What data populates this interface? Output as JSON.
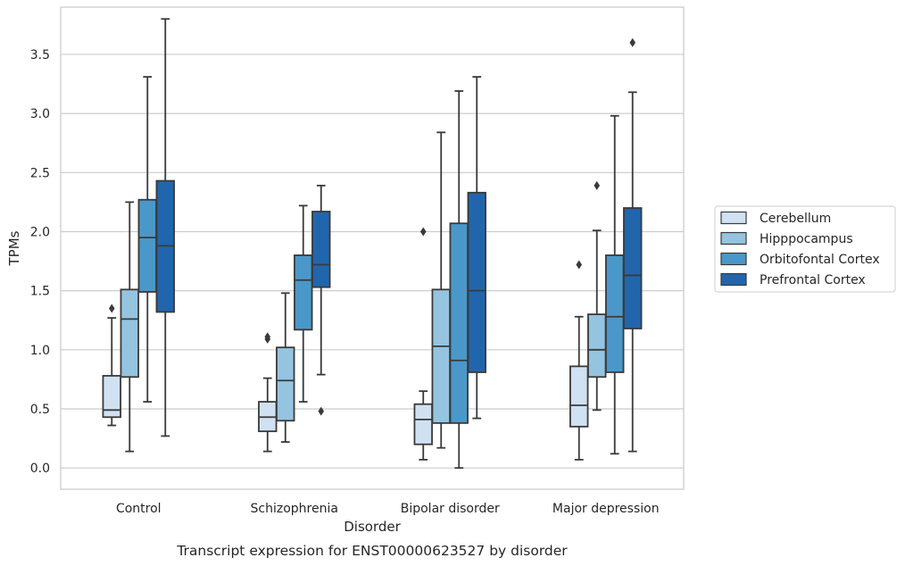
{
  "chart_data": {
    "type": "box",
    "title": "",
    "caption": "Transcript expression for ENST00000623527 by disorder",
    "xlabel": "Disorder",
    "ylabel": "TPMs",
    "ylim": [
      -0.18,
      3.9
    ],
    "yticks": [
      "0.0",
      "0.5",
      "1.0",
      "1.5",
      "2.0",
      "2.5",
      "3.0",
      "3.5"
    ],
    "ytick_values": [
      0,
      0.5,
      1.0,
      1.5,
      2.0,
      2.5,
      3.0,
      3.5
    ],
    "grid": "horizontal",
    "legend_position": "right",
    "categories": [
      "Control",
      "Schizophrenia",
      "Bipolar disorder",
      "Major depression"
    ],
    "series": [
      {
        "name": "Cerebellum",
        "color": "#d0e1f2",
        "boxes": [
          {
            "whisker_low": 0.36,
            "q1": 0.43,
            "median": 0.49,
            "q3": 0.78,
            "whisker_high": 1.27,
            "outliers": [
              1.35
            ]
          },
          {
            "whisker_low": 0.14,
            "q1": 0.31,
            "median": 0.43,
            "q3": 0.56,
            "whisker_high": 0.76,
            "outliers": [
              1.09,
              1.11
            ]
          },
          {
            "whisker_low": 0.07,
            "q1": 0.2,
            "median": 0.41,
            "q3": 0.54,
            "whisker_high": 0.65,
            "outliers": [
              2.0
            ]
          },
          {
            "whisker_low": 0.07,
            "q1": 0.35,
            "median": 0.53,
            "q3": 0.86,
            "whisker_high": 1.28,
            "outliers": [
              1.72
            ]
          }
        ]
      },
      {
        "name": "Hipppocampus",
        "color": "#94c4df",
        "boxes": [
          {
            "whisker_low": 0.14,
            "q1": 0.77,
            "median": 1.26,
            "q3": 1.51,
            "whisker_high": 2.25,
            "outliers": []
          },
          {
            "whisker_low": 0.22,
            "q1": 0.4,
            "median": 0.74,
            "q3": 1.02,
            "whisker_high": 1.48,
            "outliers": []
          },
          {
            "whisker_low": 0.17,
            "q1": 0.38,
            "median": 1.03,
            "q3": 1.51,
            "whisker_high": 2.84,
            "outliers": []
          },
          {
            "whisker_low": 0.49,
            "q1": 0.77,
            "median": 1.0,
            "q3": 1.3,
            "whisker_high": 2.01,
            "outliers": [
              2.39
            ]
          }
        ]
      },
      {
        "name": "Orbitofontal Cortex",
        "color": "#4a98c9",
        "boxes": [
          {
            "whisker_low": 0.56,
            "q1": 1.49,
            "median": 1.95,
            "q3": 2.27,
            "whisker_high": 3.31,
            "outliers": []
          },
          {
            "whisker_low": 0.56,
            "q1": 1.17,
            "median": 1.59,
            "q3": 1.8,
            "whisker_high": 2.22,
            "outliers": []
          },
          {
            "whisker_low": 0.0,
            "q1": 0.38,
            "median": 0.91,
            "q3": 2.07,
            "whisker_high": 3.19,
            "outliers": []
          },
          {
            "whisker_low": 0.12,
            "q1": 0.81,
            "median": 1.28,
            "q3": 1.8,
            "whisker_high": 2.98,
            "outliers": []
          }
        ]
      },
      {
        "name": "Prefrontal Cortex",
        "color": "#2166ac",
        "boxes": [
          {
            "whisker_low": 0.27,
            "q1": 1.32,
            "median": 1.88,
            "q3": 2.43,
            "whisker_high": 3.8,
            "outliers": []
          },
          {
            "whisker_low": 0.79,
            "q1": 1.53,
            "median": 1.72,
            "q3": 2.17,
            "whisker_high": 2.39,
            "outliers": [
              0.48
            ]
          },
          {
            "whisker_low": 0.42,
            "q1": 0.81,
            "median": 1.5,
            "q3": 2.33,
            "whisker_high": 3.31,
            "outliers": []
          },
          {
            "whisker_low": 0.14,
            "q1": 1.18,
            "median": 1.63,
            "q3": 2.2,
            "whisker_high": 3.18,
            "outliers": [
              3.6
            ]
          }
        ]
      }
    ],
    "line_color": "#3a3a3a",
    "grid_color": "#cccccc",
    "frame_color": "#cccccc"
  }
}
